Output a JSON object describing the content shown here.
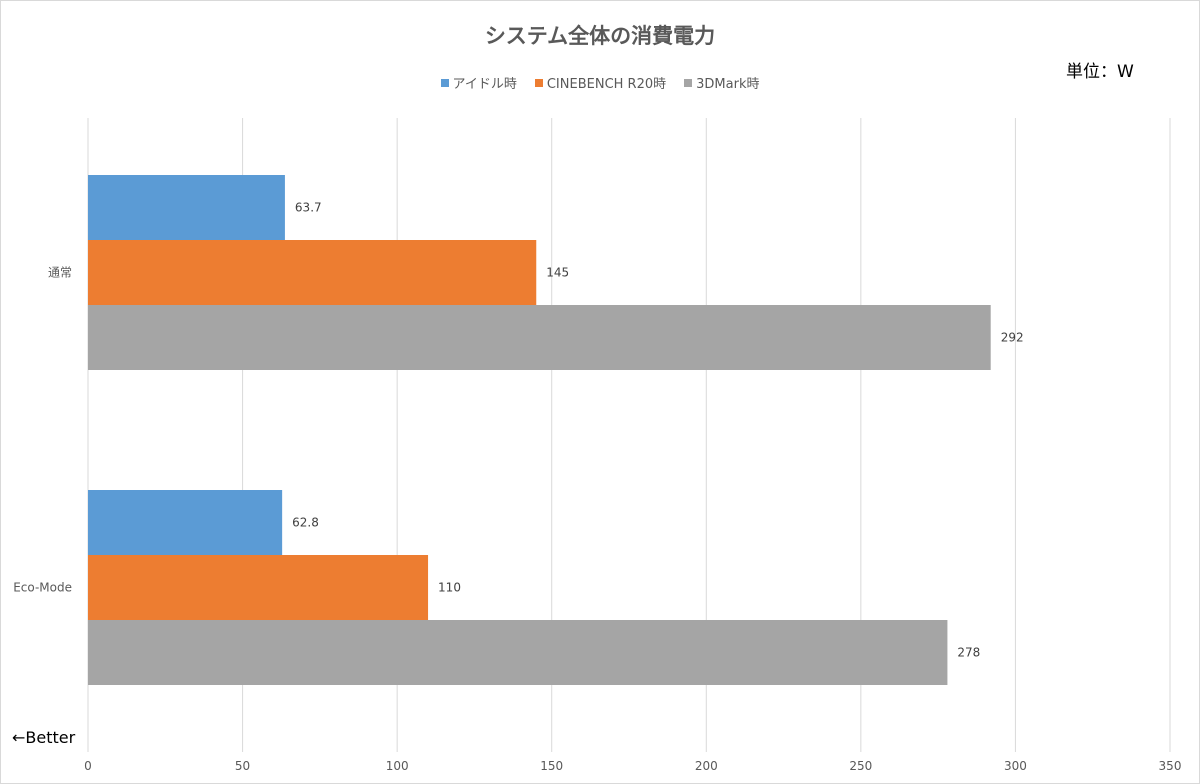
{
  "chart_data": {
    "type": "bar",
    "orientation": "horizontal",
    "title": "システム全体の消費電力",
    "unit_note": "単位：W",
    "annotation": "←Better",
    "categories": [
      "通常",
      "Eco-Mode"
    ],
    "series": [
      {
        "name": "アイドル時",
        "values": [
          63.7,
          62.8
        ],
        "color": "#5b9bd5"
      },
      {
        "name": "CINEBENCH R20時",
        "values": [
          145,
          110
        ],
        "color": "#ed7d31"
      },
      {
        "name": "3DMark時",
        "values": [
          292,
          278
        ],
        "color": "#a5a5a5"
      }
    ],
    "data_labels": [
      [
        "63.7",
        "62.8"
      ],
      [
        "145",
        "110"
      ],
      [
        "292",
        "278"
      ]
    ],
    "xlim": [
      0,
      350
    ],
    "x_ticks": [
      0,
      50,
      100,
      150,
      200,
      250,
      300,
      350
    ],
    "grid": true,
    "legend_position": "top"
  }
}
